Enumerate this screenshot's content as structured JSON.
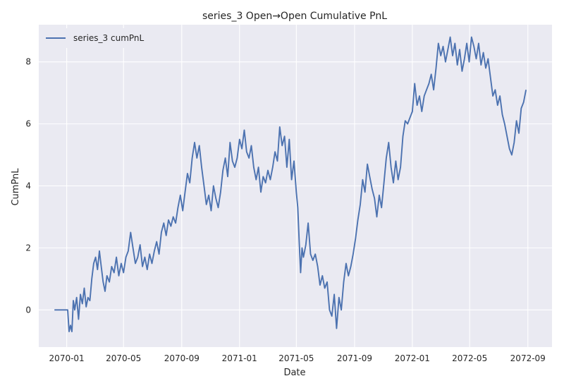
{
  "chart_data": {
    "type": "line",
    "title": "series_3 Open→Open Cumulative PnL",
    "xlabel": "Date",
    "ylabel": "CumPnL",
    "x_axis_type": "date",
    "xlim": [
      "2069-11-03",
      "2072-10-22"
    ],
    "ylim": [
      -1.2,
      9.2
    ],
    "x_ticks": [
      "2070-01-01",
      "2070-05-01",
      "2070-09-01",
      "2071-01-01",
      "2071-05-01",
      "2071-09-01",
      "2072-01-01",
      "2072-05-01",
      "2072-09-01"
    ],
    "x_tick_labels": [
      "2070-01",
      "2070-05",
      "2070-09",
      "2071-01",
      "2071-05",
      "2071-09",
      "2072-01",
      "2072-05",
      "2072-09"
    ],
    "y_ticks": [
      0,
      2,
      4,
      6,
      8
    ],
    "y_tick_labels": [
      "0",
      "2",
      "4",
      "6",
      "8"
    ],
    "grid": true,
    "legend_position": "upper-left",
    "colors": {
      "background": "#eaeaf2",
      "grid": "#ffffff",
      "line": "#4c72b0"
    },
    "series": [
      {
        "name": "series_3 cumPnL",
        "points": [
          [
            "2069-12-06",
            0.0
          ],
          [
            "2069-12-20",
            0.0
          ],
          [
            "2070-01-03",
            0.0
          ],
          [
            "2070-01-06",
            -0.7
          ],
          [
            "2070-01-09",
            -0.5
          ],
          [
            "2070-01-12",
            -0.7
          ],
          [
            "2070-01-15",
            0.3
          ],
          [
            "2070-01-18",
            0.0
          ],
          [
            "2070-01-22",
            0.4
          ],
          [
            "2070-01-26",
            -0.3
          ],
          [
            "2070-01-30",
            0.5
          ],
          [
            "2070-02-03",
            0.2
          ],
          [
            "2070-02-07",
            0.7
          ],
          [
            "2070-02-11",
            0.1
          ],
          [
            "2070-02-15",
            0.4
          ],
          [
            "2070-02-19",
            0.3
          ],
          [
            "2070-02-23",
            1.0
          ],
          [
            "2070-02-27",
            1.5
          ],
          [
            "2070-03-03",
            1.7
          ],
          [
            "2070-03-07",
            1.3
          ],
          [
            "2070-03-11",
            1.9
          ],
          [
            "2070-03-15",
            1.4
          ],
          [
            "2070-03-19",
            0.9
          ],
          [
            "2070-03-23",
            0.6
          ],
          [
            "2070-03-27",
            1.1
          ],
          [
            "2070-04-01",
            0.9
          ],
          [
            "2070-04-06",
            1.4
          ],
          [
            "2070-04-11",
            1.2
          ],
          [
            "2070-04-16",
            1.7
          ],
          [
            "2070-04-21",
            1.1
          ],
          [
            "2070-04-26",
            1.5
          ],
          [
            "2070-05-01",
            1.2
          ],
          [
            "2070-05-06",
            1.7
          ],
          [
            "2070-05-11",
            1.9
          ],
          [
            "2070-05-16",
            2.5
          ],
          [
            "2070-05-21",
            2.0
          ],
          [
            "2070-05-26",
            1.5
          ],
          [
            "2070-05-31",
            1.7
          ],
          [
            "2070-06-05",
            2.1
          ],
          [
            "2070-06-10",
            1.4
          ],
          [
            "2070-06-15",
            1.7
          ],
          [
            "2070-06-20",
            1.3
          ],
          [
            "2070-06-25",
            1.8
          ],
          [
            "2070-06-30",
            1.5
          ],
          [
            "2070-07-05",
            1.9
          ],
          [
            "2070-07-10",
            2.2
          ],
          [
            "2070-07-15",
            1.8
          ],
          [
            "2070-07-20",
            2.5
          ],
          [
            "2070-07-25",
            2.8
          ],
          [
            "2070-07-30",
            2.4
          ],
          [
            "2070-08-04",
            2.9
          ],
          [
            "2070-08-09",
            2.7
          ],
          [
            "2070-08-14",
            3.0
          ],
          [
            "2070-08-19",
            2.8
          ],
          [
            "2070-08-24",
            3.3
          ],
          [
            "2070-08-29",
            3.7
          ],
          [
            "2070-09-03",
            3.2
          ],
          [
            "2070-09-08",
            3.8
          ],
          [
            "2070-09-13",
            4.4
          ],
          [
            "2070-09-18",
            4.1
          ],
          [
            "2070-09-23",
            4.9
          ],
          [
            "2070-09-28",
            5.4
          ],
          [
            "2070-10-03",
            4.9
          ],
          [
            "2070-10-08",
            5.3
          ],
          [
            "2070-10-13",
            4.6
          ],
          [
            "2070-10-18",
            4.0
          ],
          [
            "2070-10-23",
            3.4
          ],
          [
            "2070-10-28",
            3.7
          ],
          [
            "2070-11-02",
            3.2
          ],
          [
            "2070-11-07",
            4.0
          ],
          [
            "2070-11-12",
            3.6
          ],
          [
            "2070-11-17",
            3.3
          ],
          [
            "2070-11-22",
            3.8
          ],
          [
            "2070-11-27",
            4.5
          ],
          [
            "2070-12-02",
            4.9
          ],
          [
            "2070-12-07",
            4.3
          ],
          [
            "2070-12-12",
            5.4
          ],
          [
            "2070-12-17",
            4.8
          ],
          [
            "2070-12-22",
            4.6
          ],
          [
            "2070-12-27",
            4.9
          ],
          [
            "2071-01-01",
            5.5
          ],
          [
            "2071-01-06",
            5.2
          ],
          [
            "2071-01-11",
            5.8
          ],
          [
            "2071-01-16",
            5.1
          ],
          [
            "2071-01-21",
            4.9
          ],
          [
            "2071-01-26",
            5.3
          ],
          [
            "2071-01-31",
            4.6
          ],
          [
            "2071-02-05",
            4.2
          ],
          [
            "2071-02-10",
            4.6
          ],
          [
            "2071-02-15",
            3.8
          ],
          [
            "2071-02-20",
            4.3
          ],
          [
            "2071-02-25",
            4.1
          ],
          [
            "2071-03-02",
            4.5
          ],
          [
            "2071-03-07",
            4.2
          ],
          [
            "2071-03-12",
            4.6
          ],
          [
            "2071-03-17",
            5.1
          ],
          [
            "2071-03-22",
            4.8
          ],
          [
            "2071-03-27",
            5.9
          ],
          [
            "2071-04-01",
            5.3
          ],
          [
            "2071-04-06",
            5.6
          ],
          [
            "2071-04-11",
            4.6
          ],
          [
            "2071-04-16",
            5.5
          ],
          [
            "2071-04-21",
            4.2
          ],
          [
            "2071-04-26",
            4.8
          ],
          [
            "2071-05-01",
            3.8
          ],
          [
            "2071-05-04",
            3.3
          ],
          [
            "2071-05-07",
            2.2
          ],
          [
            "2071-05-10",
            1.2
          ],
          [
            "2071-05-13",
            2.0
          ],
          [
            "2071-05-16",
            1.7
          ],
          [
            "2071-05-21",
            2.1
          ],
          [
            "2071-05-26",
            2.8
          ],
          [
            "2071-05-31",
            1.8
          ],
          [
            "2071-06-05",
            1.6
          ],
          [
            "2071-06-10",
            1.8
          ],
          [
            "2071-06-15",
            1.4
          ],
          [
            "2071-06-20",
            0.8
          ],
          [
            "2071-06-25",
            1.1
          ],
          [
            "2071-06-30",
            0.7
          ],
          [
            "2071-07-05",
            0.9
          ],
          [
            "2071-07-10",
            0.0
          ],
          [
            "2071-07-15",
            -0.2
          ],
          [
            "2071-07-20",
            0.5
          ],
          [
            "2071-07-25",
            -0.6
          ],
          [
            "2071-07-30",
            0.4
          ],
          [
            "2071-08-04",
            0.0
          ],
          [
            "2071-08-09",
            0.9
          ],
          [
            "2071-08-14",
            1.5
          ],
          [
            "2071-08-19",
            1.1
          ],
          [
            "2071-08-24",
            1.4
          ],
          [
            "2071-08-29",
            1.8
          ],
          [
            "2071-09-03",
            2.3
          ],
          [
            "2071-09-08",
            2.9
          ],
          [
            "2071-09-13",
            3.4
          ],
          [
            "2071-09-18",
            4.2
          ],
          [
            "2071-09-23",
            3.8
          ],
          [
            "2071-09-28",
            4.7
          ],
          [
            "2071-10-03",
            4.3
          ],
          [
            "2071-10-08",
            3.9
          ],
          [
            "2071-10-13",
            3.6
          ],
          [
            "2071-10-18",
            3.0
          ],
          [
            "2071-10-23",
            3.7
          ],
          [
            "2071-10-28",
            3.3
          ],
          [
            "2071-11-02",
            4.1
          ],
          [
            "2071-11-07",
            4.9
          ],
          [
            "2071-11-12",
            5.4
          ],
          [
            "2071-11-17",
            4.6
          ],
          [
            "2071-11-22",
            4.1
          ],
          [
            "2071-11-27",
            4.8
          ],
          [
            "2071-12-02",
            4.2
          ],
          [
            "2071-12-07",
            4.6
          ],
          [
            "2071-12-12",
            5.6
          ],
          [
            "2071-12-17",
            6.1
          ],
          [
            "2071-12-22",
            6.0
          ],
          [
            "2071-12-27",
            6.2
          ],
          [
            "2072-01-01",
            6.4
          ],
          [
            "2072-01-06",
            7.3
          ],
          [
            "2072-01-11",
            6.6
          ],
          [
            "2072-01-16",
            6.9
          ],
          [
            "2072-01-21",
            6.4
          ],
          [
            "2072-01-26",
            6.9
          ],
          [
            "2072-01-31",
            7.1
          ],
          [
            "2072-02-05",
            7.3
          ],
          [
            "2072-02-10",
            7.6
          ],
          [
            "2072-02-15",
            7.1
          ],
          [
            "2072-02-20",
            7.8
          ],
          [
            "2072-02-25",
            8.6
          ],
          [
            "2072-03-01",
            8.2
          ],
          [
            "2072-03-06",
            8.5
          ],
          [
            "2072-03-11",
            8.0
          ],
          [
            "2072-03-16",
            8.4
          ],
          [
            "2072-03-21",
            8.8
          ],
          [
            "2072-03-26",
            8.2
          ],
          [
            "2072-03-31",
            8.6
          ],
          [
            "2072-04-05",
            7.9
          ],
          [
            "2072-04-10",
            8.4
          ],
          [
            "2072-04-15",
            7.7
          ],
          [
            "2072-04-20",
            8.1
          ],
          [
            "2072-04-25",
            8.6
          ],
          [
            "2072-04-30",
            8.0
          ],
          [
            "2072-05-05",
            8.8
          ],
          [
            "2072-05-10",
            8.5
          ],
          [
            "2072-05-15",
            8.1
          ],
          [
            "2072-05-20",
            8.6
          ],
          [
            "2072-05-25",
            7.9
          ],
          [
            "2072-05-30",
            8.3
          ],
          [
            "2072-06-04",
            7.8
          ],
          [
            "2072-06-09",
            8.1
          ],
          [
            "2072-06-14",
            7.5
          ],
          [
            "2072-06-19",
            6.9
          ],
          [
            "2072-06-24",
            7.1
          ],
          [
            "2072-06-29",
            6.6
          ],
          [
            "2072-07-04",
            6.9
          ],
          [
            "2072-07-09",
            6.3
          ],
          [
            "2072-07-14",
            6.0
          ],
          [
            "2072-07-19",
            5.6
          ],
          [
            "2072-07-24",
            5.2
          ],
          [
            "2072-07-29",
            5.0
          ],
          [
            "2072-08-03",
            5.4
          ],
          [
            "2072-08-08",
            6.1
          ],
          [
            "2072-08-13",
            5.7
          ],
          [
            "2072-08-18",
            6.5
          ],
          [
            "2072-08-23",
            6.7
          ],
          [
            "2072-08-28",
            7.1
          ]
        ]
      }
    ]
  }
}
